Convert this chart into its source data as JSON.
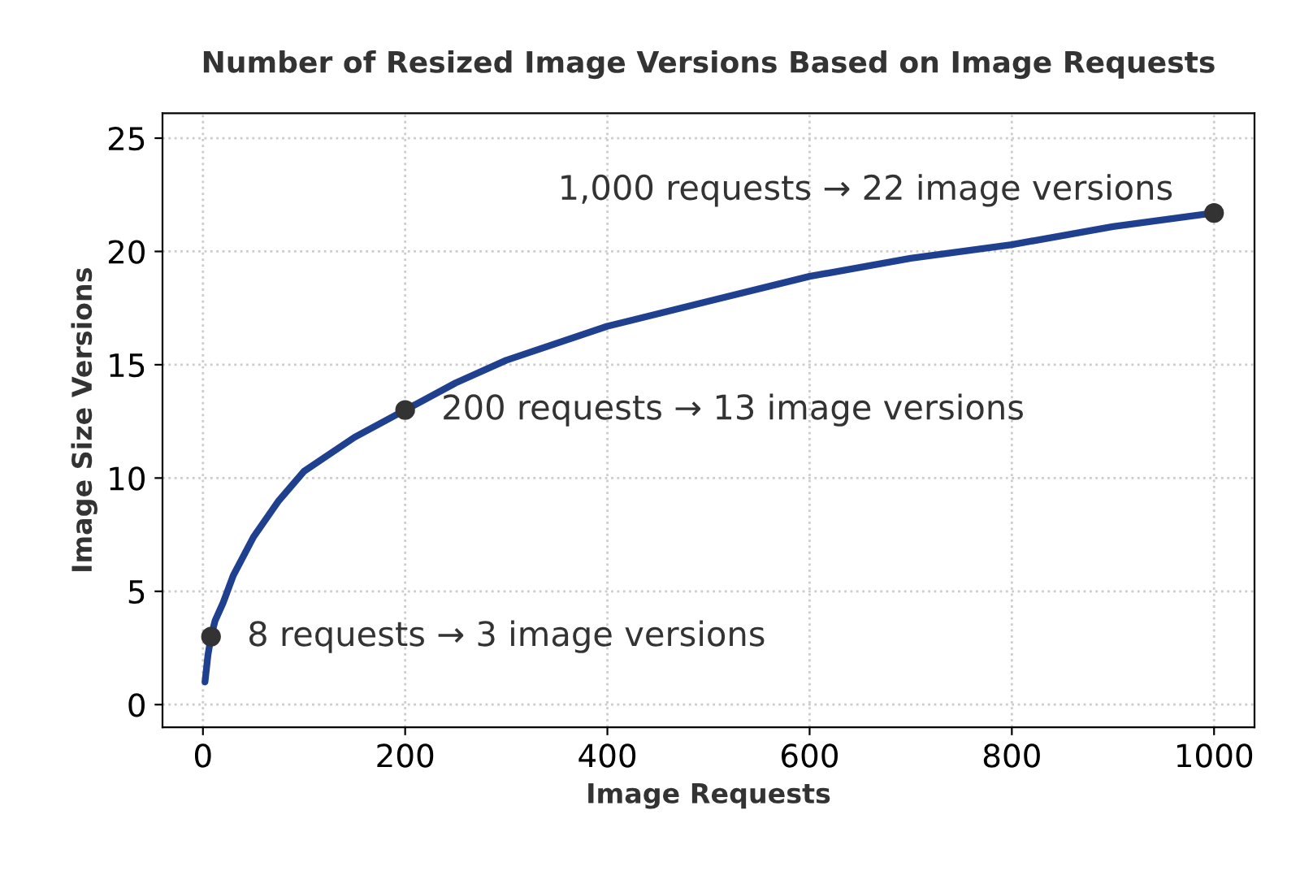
{
  "chart_data": {
    "type": "line",
    "title": "Number of Resized Image Versions Based on Image Requests",
    "xlabel": "Image Requests",
    "ylabel": "Image Size Versions",
    "series": [
      {
        "color": "#1f3f8f",
        "x": [
          2,
          5,
          8,
          12,
          20,
          30,
          50,
          75,
          100,
          150,
          200,
          250,
          300,
          400,
          500,
          600,
          700,
          800,
          900,
          1000
        ],
        "values": [
          1,
          2.2,
          3,
          3.7,
          4.5,
          5.7,
          7.4,
          9,
          10.3,
          11.8,
          13,
          14.2,
          15.2,
          16.7,
          17.8,
          18.9,
          19.7,
          20.3,
          21.1,
          21.7
        ]
      },
      {
        "type": "scatter",
        "color": "#333333",
        "marker": "circle",
        "x": [
          8,
          200,
          1000
        ],
        "values": [
          3,
          13,
          21.7
        ]
      }
    ],
    "annotations": [
      {
        "text": "8 requests → 3 image versions",
        "x": 8,
        "y": 3
      },
      {
        "text": "200 requests → 13 image versions",
        "x": 200,
        "y": 13
      },
      {
        "text": "1,000 requests → 22 image versions",
        "x": 1000,
        "y": 21.7
      }
    ],
    "xlim": [
      -40,
      1040
    ],
    "ylim": [
      -1,
      26.1
    ],
    "xticks": [
      0,
      200,
      400,
      600,
      800,
      1000
    ],
    "yticks": [
      0,
      5,
      10,
      15,
      20,
      25
    ],
    "grid": true
  }
}
